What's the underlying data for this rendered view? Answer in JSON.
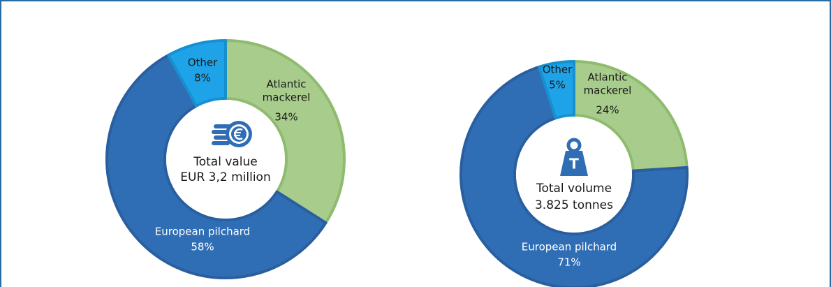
{
  "chart_data": [
    {
      "type": "donut",
      "categories": [
        "Atlantic mackerel",
        "European pilchard",
        "Other"
      ],
      "values": [
        34,
        58,
        8
      ],
      "value_labels": [
        "34%",
        "58%",
        "8%"
      ],
      "colors": [
        "#a8cc8c",
        "#2f6eb5",
        "#1ea3e8"
      ],
      "center_label": [
        "Total value",
        "EUR 3,2 million"
      ]
    },
    {
      "type": "donut",
      "categories": [
        "Atlantic mackerel",
        "European pilchard",
        "Other"
      ],
      "values": [
        24,
        71,
        5
      ],
      "value_labels": [
        "24%",
        "71%",
        "5%"
      ],
      "colors": [
        "#a8cc8c",
        "#2f6eb5",
        "#1ea3e8"
      ],
      "center_label": [
        "Total volume",
        "3.825 tonnes"
      ]
    }
  ]
}
